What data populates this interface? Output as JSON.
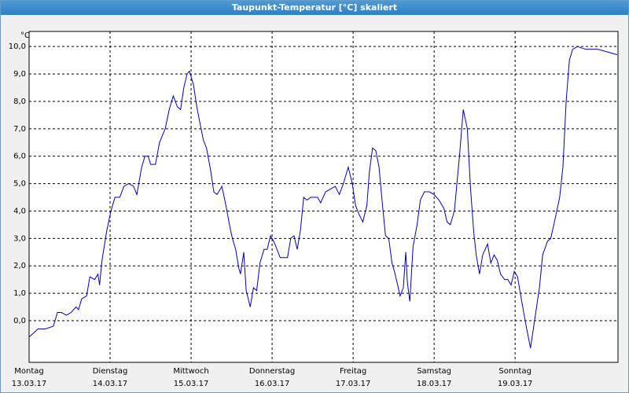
{
  "chart_data": {
    "type": "line",
    "title": "Taupunkt-Temperatur [°C] skaliert",
    "y_unit": "°C",
    "color": "#0000c0",
    "grid": true,
    "xlim": [
      0,
      7.27
    ],
    "ylim": [
      -1.52,
      10.55
    ],
    "xticks": [
      {
        "value": 0,
        "label": "Montag",
        "date": "13.03.17"
      },
      {
        "value": 1,
        "label": "Dienstag",
        "date": "14.03.17"
      },
      {
        "value": 2,
        "label": "Mittwoch",
        "date": "15.03.17"
      },
      {
        "value": 3,
        "label": "Donnerstag",
        "date": "16.03.17"
      },
      {
        "value": 4,
        "label": "Freitag",
        "date": "17.03.17"
      },
      {
        "value": 5,
        "label": "Samstag",
        "date": "18.03.17"
      },
      {
        "value": 6,
        "label": "Sonntag",
        "date": "19.03.17"
      }
    ],
    "yticks": [
      {
        "value": 0,
        "label": "0,0"
      },
      {
        "value": 1,
        "label": "1,0"
      },
      {
        "value": 2,
        "label": "2,0"
      },
      {
        "value": 3,
        "label": "3,0"
      },
      {
        "value": 4,
        "label": "4,0"
      },
      {
        "value": 5,
        "label": "5,0"
      },
      {
        "value": 6,
        "label": "6,0"
      },
      {
        "value": 7,
        "label": "7,0"
      },
      {
        "value": 8,
        "label": "8,0"
      },
      {
        "value": 9,
        "label": "9,0"
      },
      {
        "value": 10,
        "label": "10,0"
      }
    ],
    "x": [
      0,
      0.11,
      0.2,
      0.3,
      0.35,
      0.4,
      0.46,
      0.52,
      0.58,
      0.61,
      0.65,
      0.71,
      0.75,
      0.81,
      0.85,
      0.87,
      0.9,
      0.96,
      1.01,
      1.06,
      1.12,
      1.17,
      1.23,
      1.29,
      1.33,
      1.39,
      1.43,
      1.47,
      1.5,
      1.56,
      1.61,
      1.68,
      1.73,
      1.78,
      1.83,
      1.87,
      1.91,
      1.95,
      1.98,
      2.03,
      2.07,
      2.11,
      2.15,
      2.19,
      2.24,
      2.28,
      2.32,
      2.38,
      2.43,
      2.48,
      2.51,
      2.55,
      2.59,
      2.61,
      2.65,
      2.68,
      2.73,
      2.77,
      2.81,
      2.85,
      2.9,
      2.94,
      2.98,
      3.02,
      3.06,
      3.1,
      3.16,
      3.19,
      3.23,
      3.27,
      3.31,
      3.35,
      3.39,
      3.43,
      3.48,
      3.52,
      3.56,
      3.6,
      3.66,
      3.72,
      3.78,
      3.83,
      3.88,
      3.94,
      3.99,
      4.03,
      4.07,
      4.12,
      4.17,
      4.2,
      4.24,
      4.28,
      4.32,
      4.36,
      4.4,
      4.44,
      4.48,
      4.51,
      4.55,
      4.58,
      4.62,
      4.65,
      4.67,
      4.7,
      4.74,
      4.79,
      4.83,
      4.88,
      4.94,
      5.0,
      5.06,
      5.12,
      5.16,
      5.2,
      5.25,
      5.31,
      5.36,
      5.41,
      5.45,
      5.49,
      5.52,
      5.56,
      5.6,
      5.66,
      5.7,
      5.74,
      5.78,
      5.82,
      5.87,
      5.91,
      5.95,
      5.99,
      6.03,
      6.07,
      6.13,
      6.19,
      6.25,
      6.3,
      6.34,
      6.4,
      6.44,
      6.5,
      6.55,
      6.59,
      6.63,
      6.67,
      6.71,
      6.77,
      6.87,
      7.02,
      7.14,
      7.26
    ],
    "series": [
      {
        "name": "Taupunkt-Temperatur",
        "values": [
          -0.6,
          -0.3,
          -0.3,
          -0.2,
          0.3,
          0.3,
          0.2,
          0.3,
          0.5,
          0.4,
          0.8,
          0.9,
          1.6,
          1.5,
          1.7,
          1.3,
          2.2,
          3.3,
          4.0,
          4.5,
          4.5,
          4.9,
          5.0,
          4.9,
          4.6,
          5.6,
          6.0,
          6.0,
          5.7,
          5.7,
          6.5,
          7.0,
          7.7,
          8.2,
          7.8,
          7.7,
          8.5,
          9.0,
          9.1,
          8.6,
          7.8,
          7.2,
          6.6,
          6.3,
          5.5,
          4.7,
          4.6,
          4.9,
          4.2,
          3.4,
          3.0,
          2.6,
          1.9,
          1.7,
          2.5,
          1.1,
          0.5,
          1.2,
          1.1,
          2.1,
          2.6,
          2.6,
          3.1,
          2.9,
          2.6,
          2.3,
          2.3,
          2.3,
          3.0,
          3.1,
          2.6,
          3.3,
          4.5,
          4.4,
          4.5,
          4.5,
          4.5,
          4.3,
          4.7,
          4.8,
          4.9,
          4.6,
          5.0,
          5.6,
          5.0,
          4.2,
          3.9,
          3.6,
          4.2,
          5.4,
          6.3,
          6.2,
          5.6,
          4.3,
          3.1,
          3.0,
          2.1,
          1.8,
          1.3,
          0.9,
          1.2,
          2.5,
          1.4,
          0.7,
          2.7,
          3.5,
          4.4,
          4.7,
          4.7,
          4.6,
          4.4,
          4.1,
          3.6,
          3.5,
          4.0,
          5.9,
          7.7,
          7.0,
          4.8,
          3.2,
          2.4,
          1.7,
          2.4,
          2.8,
          2.1,
          2.4,
          2.2,
          1.7,
          1.5,
          1.5,
          1.3,
          1.8,
          1.6,
          0.9,
          -0.1,
          -1.0,
          0.2,
          1.2,
          2.4,
          2.9,
          3.0,
          3.8,
          4.5,
          5.6,
          8.0,
          9.5,
          9.9,
          10.0,
          9.9,
          9.9,
          9.8,
          9.7
        ]
      }
    ]
  }
}
